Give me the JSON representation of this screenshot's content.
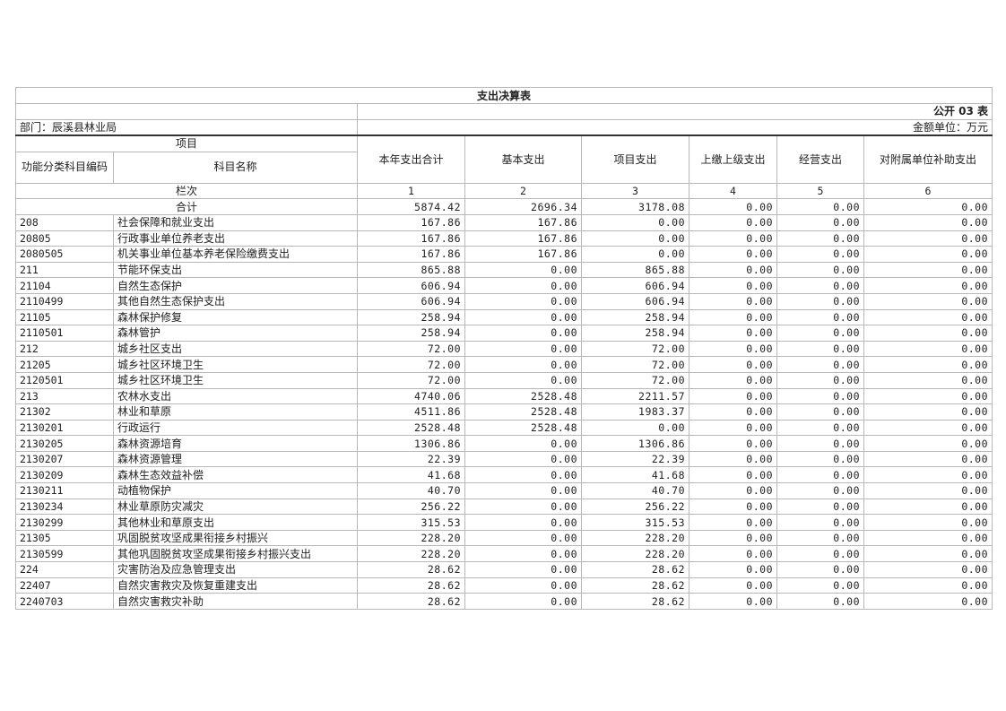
{
  "title": "支出决算表",
  "table_no": "公开 03 表",
  "department": "部门：辰溪县林业局",
  "unit": "金额单位：万元",
  "headers": {
    "item": "项目",
    "code": "功能分类科目编码",
    "name": "科目名称",
    "cols": [
      "本年支出合计",
      "基本支出",
      "项目支出",
      "上缴上级支出",
      "经营支出",
      "对附属单位补助支出"
    ]
  },
  "column_index_label": "栏次",
  "column_numbers": [
    "1",
    "2",
    "3",
    "4",
    "5",
    "6"
  ],
  "total": {
    "label": "合计",
    "values": [
      "5874.42",
      "2696.34",
      "3178.08",
      "0.00",
      "0.00",
      "0.00"
    ]
  },
  "rows": [
    [
      "208",
      "社会保障和就业支出",
      "167.86",
      "167.86",
      "0.00",
      "0.00",
      "0.00",
      "0.00"
    ],
    [
      "20805",
      "行政事业单位养老支出",
      "167.86",
      "167.86",
      "0.00",
      "0.00",
      "0.00",
      "0.00"
    ],
    [
      "2080505",
      "机关事业单位基本养老保险缴费支出",
      "167.86",
      "167.86",
      "0.00",
      "0.00",
      "0.00",
      "0.00"
    ],
    [
      "211",
      "节能环保支出",
      "865.88",
      "0.00",
      "865.88",
      "0.00",
      "0.00",
      "0.00"
    ],
    [
      "21104",
      "自然生态保护",
      "606.94",
      "0.00",
      "606.94",
      "0.00",
      "0.00",
      "0.00"
    ],
    [
      "2110499",
      "其他自然生态保护支出",
      "606.94",
      "0.00",
      "606.94",
      "0.00",
      "0.00",
      "0.00"
    ],
    [
      "21105",
      "森林保护修复",
      "258.94",
      "0.00",
      "258.94",
      "0.00",
      "0.00",
      "0.00"
    ],
    [
      "2110501",
      "森林管护",
      "258.94",
      "0.00",
      "258.94",
      "0.00",
      "0.00",
      "0.00"
    ],
    [
      "212",
      "城乡社区支出",
      "72.00",
      "0.00",
      "72.00",
      "0.00",
      "0.00",
      "0.00"
    ],
    [
      "21205",
      "城乡社区环境卫生",
      "72.00",
      "0.00",
      "72.00",
      "0.00",
      "0.00",
      "0.00"
    ],
    [
      "2120501",
      "城乡社区环境卫生",
      "72.00",
      "0.00",
      "72.00",
      "0.00",
      "0.00",
      "0.00"
    ],
    [
      "213",
      "农林水支出",
      "4740.06",
      "2528.48",
      "2211.57",
      "0.00",
      "0.00",
      "0.00"
    ],
    [
      "21302",
      "林业和草原",
      "4511.86",
      "2528.48",
      "1983.37",
      "0.00",
      "0.00",
      "0.00"
    ],
    [
      "2130201",
      "行政运行",
      "2528.48",
      "2528.48",
      "0.00",
      "0.00",
      "0.00",
      "0.00"
    ],
    [
      "2130205",
      "森林资源培育",
      "1306.86",
      "0.00",
      "1306.86",
      "0.00",
      "0.00",
      "0.00"
    ],
    [
      "2130207",
      "森林资源管理",
      "22.39",
      "0.00",
      "22.39",
      "0.00",
      "0.00",
      "0.00"
    ],
    [
      "2130209",
      "森林生态效益补偿",
      "41.68",
      "0.00",
      "41.68",
      "0.00",
      "0.00",
      "0.00"
    ],
    [
      "2130211",
      "动植物保护",
      "40.70",
      "0.00",
      "40.70",
      "0.00",
      "0.00",
      "0.00"
    ],
    [
      "2130234",
      "林业草原防灾减灾",
      "256.22",
      "0.00",
      "256.22",
      "0.00",
      "0.00",
      "0.00"
    ],
    [
      "2130299",
      "其他林业和草原支出",
      "315.53",
      "0.00",
      "315.53",
      "0.00",
      "0.00",
      "0.00"
    ],
    [
      "21305",
      "巩固脱贫攻坚成果衔接乡村振兴",
      "228.20",
      "0.00",
      "228.20",
      "0.00",
      "0.00",
      "0.00"
    ],
    [
      "2130599",
      "其他巩固脱贫攻坚成果衔接乡村振兴支出",
      "228.20",
      "0.00",
      "228.20",
      "0.00",
      "0.00",
      "0.00"
    ],
    [
      "224",
      "灾害防治及应急管理支出",
      "28.62",
      "0.00",
      "28.62",
      "0.00",
      "0.00",
      "0.00"
    ],
    [
      "22407",
      "自然灾害救灾及恢复重建支出",
      "28.62",
      "0.00",
      "28.62",
      "0.00",
      "0.00",
      "0.00"
    ],
    [
      "2240703",
      "自然灾害救灾补助",
      "28.62",
      "0.00",
      "28.62",
      "0.00",
      "0.00",
      "0.00"
    ]
  ]
}
